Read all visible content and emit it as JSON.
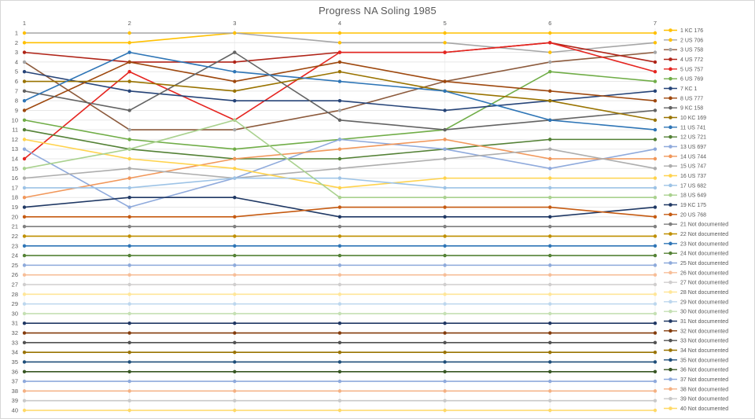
{
  "title": "Progress NA Soling 1985",
  "chart_data": {
    "type": "line",
    "title": "Progress NA Soling 1985",
    "x_axis_position": "top",
    "x_ticks": [
      "1",
      "2",
      "3",
      "4",
      "5",
      "6",
      "7"
    ],
    "y_ticks": [
      "1",
      "2",
      "3",
      "4",
      "5",
      "6",
      "7",
      "8",
      "9",
      "10",
      "11",
      "12",
      "13",
      "14",
      "15",
      "16",
      "17",
      "18",
      "19",
      "20",
      "21",
      "22",
      "23",
      "24",
      "25",
      "26",
      "27",
      "28",
      "29",
      "30",
      "31",
      "32",
      "33",
      "34",
      "35",
      "36",
      "37",
      "38",
      "39",
      "40"
    ],
    "ylim": [
      1,
      40
    ],
    "y_inverted": true,
    "grid": "horizontal",
    "legend_position": "right",
    "series": [
      {
        "name": "1 KC 176",
        "color": "#FFC000",
        "values": [
          2,
          2,
          1,
          1,
          1,
          1,
          1
        ]
      },
      {
        "name": "2 US 706",
        "color": "#A6A6A6",
        "marker_color": "#FFC000",
        "values": [
          1,
          1,
          1,
          2,
          2,
          3,
          2
        ]
      },
      {
        "name": "3 US 758",
        "color": "#8C5A3C",
        "marker_color": "#A6A6A6",
        "values": [
          4,
          11,
          11,
          9,
          6,
          4,
          3
        ]
      },
      {
        "name": "4 US 772",
        "color": "#B02418",
        "values": [
          3,
          4,
          4,
          3,
          3,
          2,
          4
        ]
      },
      {
        "name": "5 US 757",
        "color": "#E52520",
        "values": [
          14,
          5,
          10,
          3,
          3,
          2,
          5
        ]
      },
      {
        "name": "6 US 769",
        "color": "#70AD47",
        "values": [
          10,
          12,
          13,
          12,
          11,
          5,
          6
        ]
      },
      {
        "name": "7 KC 1",
        "color": "#264478",
        "values": [
          5,
          7,
          8,
          8,
          9,
          8,
          7
        ]
      },
      {
        "name": "8 US 777",
        "color": "#9E480E",
        "values": [
          9,
          4,
          6,
          4,
          6,
          7,
          8
        ]
      },
      {
        "name": "9 KC 158",
        "color": "#636363",
        "values": [
          7,
          9,
          3,
          10,
          11,
          10,
          9
        ]
      },
      {
        "name": "10 KC 169",
        "color": "#997300",
        "values": [
          6,
          6,
          7,
          5,
          7,
          8,
          10
        ]
      },
      {
        "name": "11 US 741",
        "color": "#2E75B6",
        "values": [
          8,
          3,
          5,
          6,
          7,
          10,
          11
        ]
      },
      {
        "name": "12 US 721",
        "color": "#538135",
        "values": [
          11,
          13,
          14,
          14,
          13,
          12,
          12
        ]
      },
      {
        "name": "13 US 697",
        "color": "#8FAADC",
        "values": [
          13,
          19,
          16,
          12,
          13,
          15,
          13
        ]
      },
      {
        "name": "14 US 744",
        "color": "#F1975A",
        "values": [
          18,
          16,
          14,
          13,
          12,
          14,
          14
        ]
      },
      {
        "name": "15 US 747",
        "color": "#ADADAD",
        "values": [
          16,
          15,
          16,
          15,
          14,
          13,
          15
        ]
      },
      {
        "name": "16 US 737",
        "color": "#FFD34D",
        "values": [
          12,
          14,
          15,
          17,
          16,
          16,
          16
        ]
      },
      {
        "name": "17 US 682",
        "color": "#9DC3E6",
        "values": [
          17,
          17,
          16,
          16,
          17,
          17,
          17
        ]
      },
      {
        "name": "18 US 649",
        "color": "#A9D18E",
        "values": [
          15,
          13,
          10,
          18,
          18,
          18,
          18
        ]
      },
      {
        "name": "19 KC 175",
        "color": "#1F3864",
        "values": [
          19,
          18,
          18,
          20,
          20,
          20,
          19
        ]
      },
      {
        "name": "20 US 768",
        "color": "#C55A11",
        "values": [
          20,
          20,
          20,
          19,
          19,
          19,
          20
        ]
      },
      {
        "name": "21 Not documented",
        "color": "#7F7F7F",
        "values": [
          21,
          21,
          21,
          21,
          21,
          21,
          21
        ]
      },
      {
        "name": "22 Not documented",
        "color": "#BF8F00",
        "values": [
          22,
          22,
          22,
          22,
          22,
          22,
          22
        ]
      },
      {
        "name": "23 Not documented",
        "color": "#2E75B6",
        "values": [
          23,
          23,
          23,
          23,
          23,
          23,
          23
        ]
      },
      {
        "name": "24 Not documented",
        "color": "#548235",
        "values": [
          24,
          24,
          24,
          24,
          24,
          24,
          24
        ]
      },
      {
        "name": "25 Not documented",
        "color": "#8EAADB",
        "values": [
          25,
          25,
          25,
          25,
          25,
          25,
          25
        ]
      },
      {
        "name": "26 Not documented",
        "color": "#F7BE98",
        "values": [
          26,
          26,
          26,
          26,
          26,
          26,
          26
        ]
      },
      {
        "name": "27 Not documented",
        "color": "#D0CECE",
        "values": [
          27,
          27,
          27,
          27,
          27,
          27,
          27
        ]
      },
      {
        "name": "28 Not documented",
        "color": "#FFE699",
        "values": [
          28,
          28,
          28,
          28,
          28,
          28,
          28
        ]
      },
      {
        "name": "29 Not documented",
        "color": "#BDD7EE",
        "values": [
          29,
          29,
          29,
          29,
          29,
          29,
          29
        ]
      },
      {
        "name": "30 Not documented",
        "color": "#C5E0B4",
        "values": [
          30,
          30,
          30,
          30,
          30,
          30,
          30
        ]
      },
      {
        "name": "31 Not documented",
        "color": "#203864",
        "values": [
          31,
          31,
          31,
          31,
          31,
          31,
          31
        ]
      },
      {
        "name": "32 Not documented",
        "color": "#843C0C",
        "values": [
          32,
          32,
          32,
          32,
          32,
          32,
          32
        ]
      },
      {
        "name": "33 Not documented",
        "color": "#525252",
        "values": [
          33,
          33,
          33,
          33,
          33,
          33,
          33
        ]
      },
      {
        "name": "34 Not documented",
        "color": "#997300",
        "values": [
          34,
          34,
          34,
          34,
          34,
          34,
          34
        ]
      },
      {
        "name": "35 Not documented",
        "color": "#1F4E79",
        "values": [
          35,
          35,
          35,
          35,
          35,
          35,
          35
        ]
      },
      {
        "name": "36 Not documented",
        "color": "#375623",
        "values": [
          36,
          36,
          36,
          36,
          36,
          36,
          36
        ]
      },
      {
        "name": "37 Not documented",
        "color": "#8FAADC",
        "values": [
          37,
          37,
          37,
          37,
          37,
          37,
          37
        ]
      },
      {
        "name": "38 Not documented",
        "color": "#F4B183",
        "values": [
          38,
          38,
          38,
          38,
          38,
          38,
          38
        ]
      },
      {
        "name": "39 Not documented",
        "color": "#C9C9C9",
        "values": [
          39,
          39,
          39,
          39,
          39,
          39,
          39
        ]
      },
      {
        "name": "40 Not documented",
        "color": "#FFD966",
        "values": [
          40,
          40,
          40,
          40,
          40,
          40,
          40
        ]
      }
    ],
    "style": {
      "text_color": "#595959",
      "h_grid_color": "#E7E7E7",
      "v_grid_color": "#F1F1F1",
      "border_color": "#D7D7D7"
    }
  }
}
